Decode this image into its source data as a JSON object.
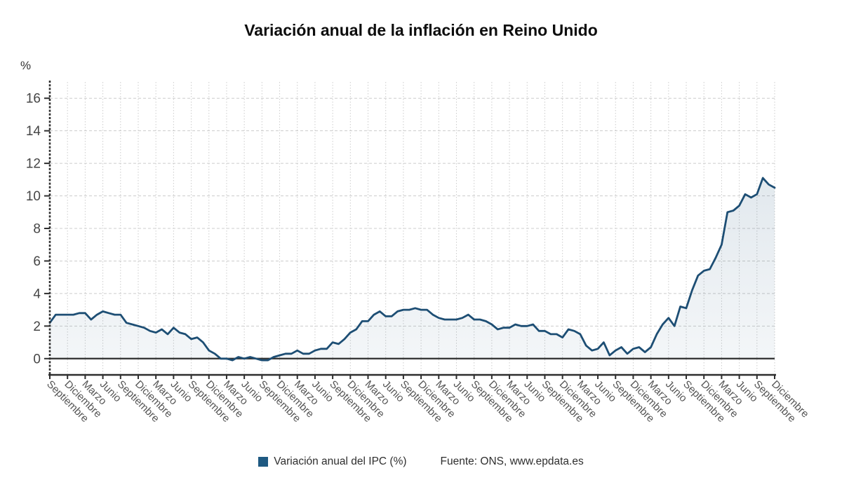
{
  "title": "Variación anual de la inflación en Reino Unido",
  "y_axis": {
    "unit_label": "%"
  },
  "legend": {
    "series_label": "Variación anual del IPC (%)",
    "source": "Fuente: ONS, www.epdata.es"
  },
  "colors": {
    "line": "#1d4e74",
    "swatch": "#1f5a82",
    "fill_top": "rgba(31,82,121,0.13)",
    "fill_bottom": "rgba(31,82,121,0.05)",
    "grid": "#cccccc",
    "axis": "#2e2e2e",
    "y_tick_text": "#454545",
    "x_tick_text": "#555555"
  },
  "chart_data": {
    "type": "area",
    "title": "Variación anual de la inflación en Reino Unido",
    "ylabel": "%",
    "ylim": [
      -1,
      17
    ],
    "y_ticks": [
      0,
      2,
      4,
      6,
      8,
      10,
      12,
      14,
      16
    ],
    "grid": true,
    "legend_position": "bottom",
    "x_tick_labels": [
      "Septiembre",
      "Diciembre",
      "Marzo",
      "Junio",
      "Septiembre",
      "Diciembre",
      "Marzo",
      "Junio",
      "Septiembre",
      "Diciembre",
      "Marzo",
      "Junio",
      "Septiembre",
      "Diciembre",
      "Marzo",
      "Junio",
      "Septiembre",
      "Diciembre",
      "Marzo",
      "Junio",
      "Septiembre",
      "Diciembre",
      "Marzo",
      "Junio",
      "Septiembre",
      "Diciembre",
      "Marzo",
      "Junio",
      "Septiembre",
      "Diciembre",
      "Marzo",
      "Junio",
      "Septiembre",
      "Diciembre",
      "Marzo",
      "Junio",
      "Septiembre",
      "Diciembre",
      "Marzo",
      "Junio",
      "Septiembre",
      "Diciembre"
    ],
    "series": [
      {
        "name": "Variación anual del IPC (%)",
        "values": [
          2.2,
          2.7,
          2.7,
          2.7,
          2.7,
          2.8,
          2.8,
          2.4,
          2.7,
          2.9,
          2.8,
          2.7,
          2.7,
          2.2,
          2.1,
          2.0,
          1.9,
          1.7,
          1.6,
          1.8,
          1.5,
          1.9,
          1.6,
          1.5,
          1.2,
          1.3,
          1.0,
          0.5,
          0.3,
          0.0,
          0.0,
          -0.1,
          0.1,
          0.0,
          0.1,
          0.0,
          -0.1,
          -0.1,
          0.1,
          0.2,
          0.3,
          0.3,
          0.5,
          0.3,
          0.3,
          0.5,
          0.6,
          0.6,
          1.0,
          0.9,
          1.2,
          1.6,
          1.8,
          2.3,
          2.3,
          2.7,
          2.9,
          2.6,
          2.6,
          2.9,
          3.0,
          3.0,
          3.1,
          3.0,
          3.0,
          2.7,
          2.5,
          2.4,
          2.4,
          2.4,
          2.5,
          2.7,
          2.4,
          2.4,
          2.3,
          2.1,
          1.8,
          1.9,
          1.9,
          2.1,
          2.0,
          2.0,
          2.1,
          1.7,
          1.7,
          1.5,
          1.5,
          1.3,
          1.8,
          1.7,
          1.5,
          0.8,
          0.5,
          0.6,
          1.0,
          0.2,
          0.5,
          0.7,
          0.3,
          0.6,
          0.7,
          0.4,
          0.7,
          1.5,
          2.1,
          2.5,
          2.0,
          3.2,
          3.1,
          4.2,
          5.1,
          5.4,
          5.5,
          6.2,
          7.0,
          9.0,
          9.1,
          9.4,
          10.1,
          9.9,
          10.1,
          11.1,
          10.7,
          10.5
        ]
      }
    ]
  }
}
